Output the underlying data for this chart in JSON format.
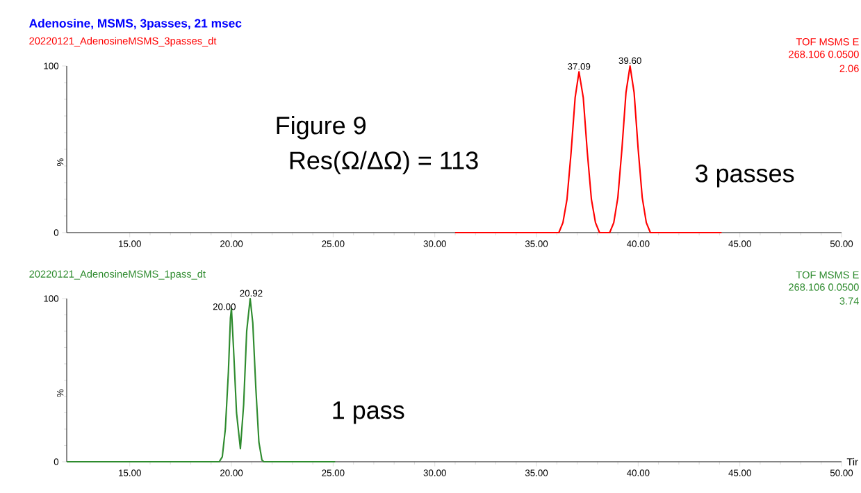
{
  "chart_data": [
    {
      "type": "line",
      "title": "Adenosine, MSMS, 3passes, 21 msec",
      "subtitle": "20220121_AdenosineMSMS_3passes_dt",
      "ylabel": "%",
      "series": [
        {
          "color": "#ff0000",
          "x": [
            31.0,
            36.1,
            36.3,
            36.5,
            36.7,
            36.9,
            37.09,
            37.3,
            37.5,
            37.7,
            37.9,
            38.1,
            38.6,
            38.8,
            39.0,
            39.2,
            39.4,
            39.6,
            39.8,
            40.0,
            40.2,
            40.4,
            40.6,
            44.1
          ],
          "values": [
            0,
            0,
            6,
            20,
            48,
            81,
            96.5,
            81,
            48,
            20,
            6,
            0,
            0,
            6,
            21,
            50,
            84,
            100,
            84,
            50,
            21,
            6,
            0,
            0
          ]
        }
      ],
      "xlim": [
        11.9,
        50
      ],
      "ylim": [
        0,
        100
      ],
      "xticks": [
        {
          "value": 15,
          "label": "15.00"
        },
        {
          "value": 20,
          "label": "20.00"
        },
        {
          "value": 25,
          "label": "25.00"
        },
        {
          "value": 30,
          "label": "30.00"
        },
        {
          "value": 35,
          "label": "35.00"
        },
        {
          "value": 40,
          "label": "40.00"
        },
        {
          "value": 45,
          "label": "45.00"
        },
        {
          "value": 50,
          "label": "50.00"
        }
      ],
      "yticks": [
        0,
        100
      ],
      "annotations": [
        "Figure 9",
        "Res(Ω/ΔΩ) = 113",
        "3 passes",
        "TOF MSMS E",
        "268.106 0.0500",
        "2.06",
        {
          "text": "37.09",
          "x": 37.09,
          "y": 96.5
        },
        {
          "text": "39.60",
          "x": 39.6,
          "y": 100
        }
      ]
    },
    {
      "type": "line",
      "subtitle": "20220121_AdenosineMSMS_1pass_dt",
      "ylabel": "%",
      "xlabel": "Tir",
      "series": [
        {
          "color": "#2e8b2e",
          "x": [
            11.9,
            19.4,
            19.55,
            19.7,
            19.85,
            19.95,
            20.0,
            20.1,
            20.25,
            20.44,
            20.6,
            20.75,
            20.92,
            21.05,
            21.2,
            21.35,
            21.5,
            21.6,
            25.1
          ],
          "values": [
            0,
            0,
            3,
            20,
            55,
            88,
            94,
            70,
            30,
            8,
            35,
            80,
            100,
            85,
            45,
            12,
            1,
            0,
            0
          ]
        }
      ],
      "xlim": [
        11.9,
        50
      ],
      "ylim": [
        0,
        100
      ],
      "xticks": [
        {
          "value": 15,
          "label": "15.00"
        },
        {
          "value": 20,
          "label": "20.00"
        },
        {
          "value": 25,
          "label": "25.00"
        },
        {
          "value": 30,
          "label": "30.00"
        },
        {
          "value": 35,
          "label": "35.00"
        },
        {
          "value": 40,
          "label": "40.00"
        },
        {
          "value": 45,
          "label": "45.00"
        },
        {
          "value": 50,
          "label": "50.00"
        }
      ],
      "yticks": [
        0,
        100
      ],
      "annotations": [
        "1 pass",
        "TOF MSMS E",
        "268.106 0.0500",
        "3.74",
        {
          "text": "20.00",
          "x": 20.0,
          "y": 94
        },
        {
          "text": "20.92",
          "x": 20.92,
          "y": 100
        }
      ]
    }
  ]
}
